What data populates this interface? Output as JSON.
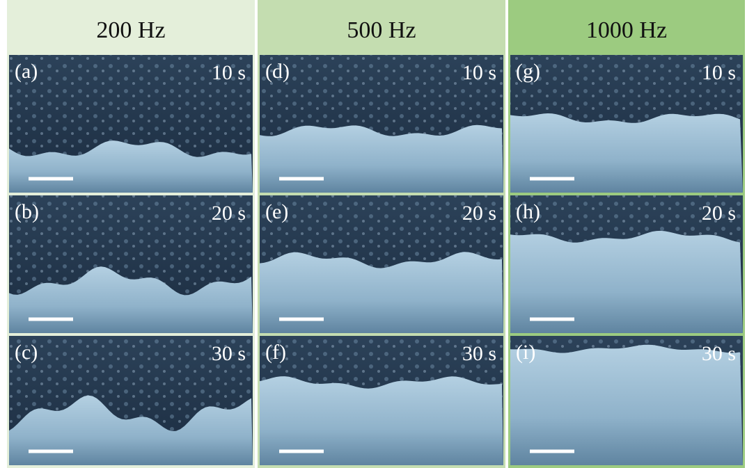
{
  "columns": [
    {
      "title": "200 Hz",
      "panels": [
        {
          "label": "(a)",
          "time": "10 s"
        },
        {
          "label": "(b)",
          "time": "20 s"
        },
        {
          "label": "(c)",
          "time": "30 s"
        }
      ]
    },
    {
      "title": "500 Hz",
      "panels": [
        {
          "label": "(d)",
          "time": "10 s"
        },
        {
          "label": "(e)",
          "time": "20 s"
        },
        {
          "label": "(f)",
          "time": "30 s"
        }
      ]
    },
    {
      "title": "1000 Hz",
      "panels": [
        {
          "label": "(g)",
          "time": "10 s"
        },
        {
          "label": "(h)",
          "time": "20 s"
        },
        {
          "label": "(i)",
          "time": "30 s"
        }
      ]
    }
  ]
}
